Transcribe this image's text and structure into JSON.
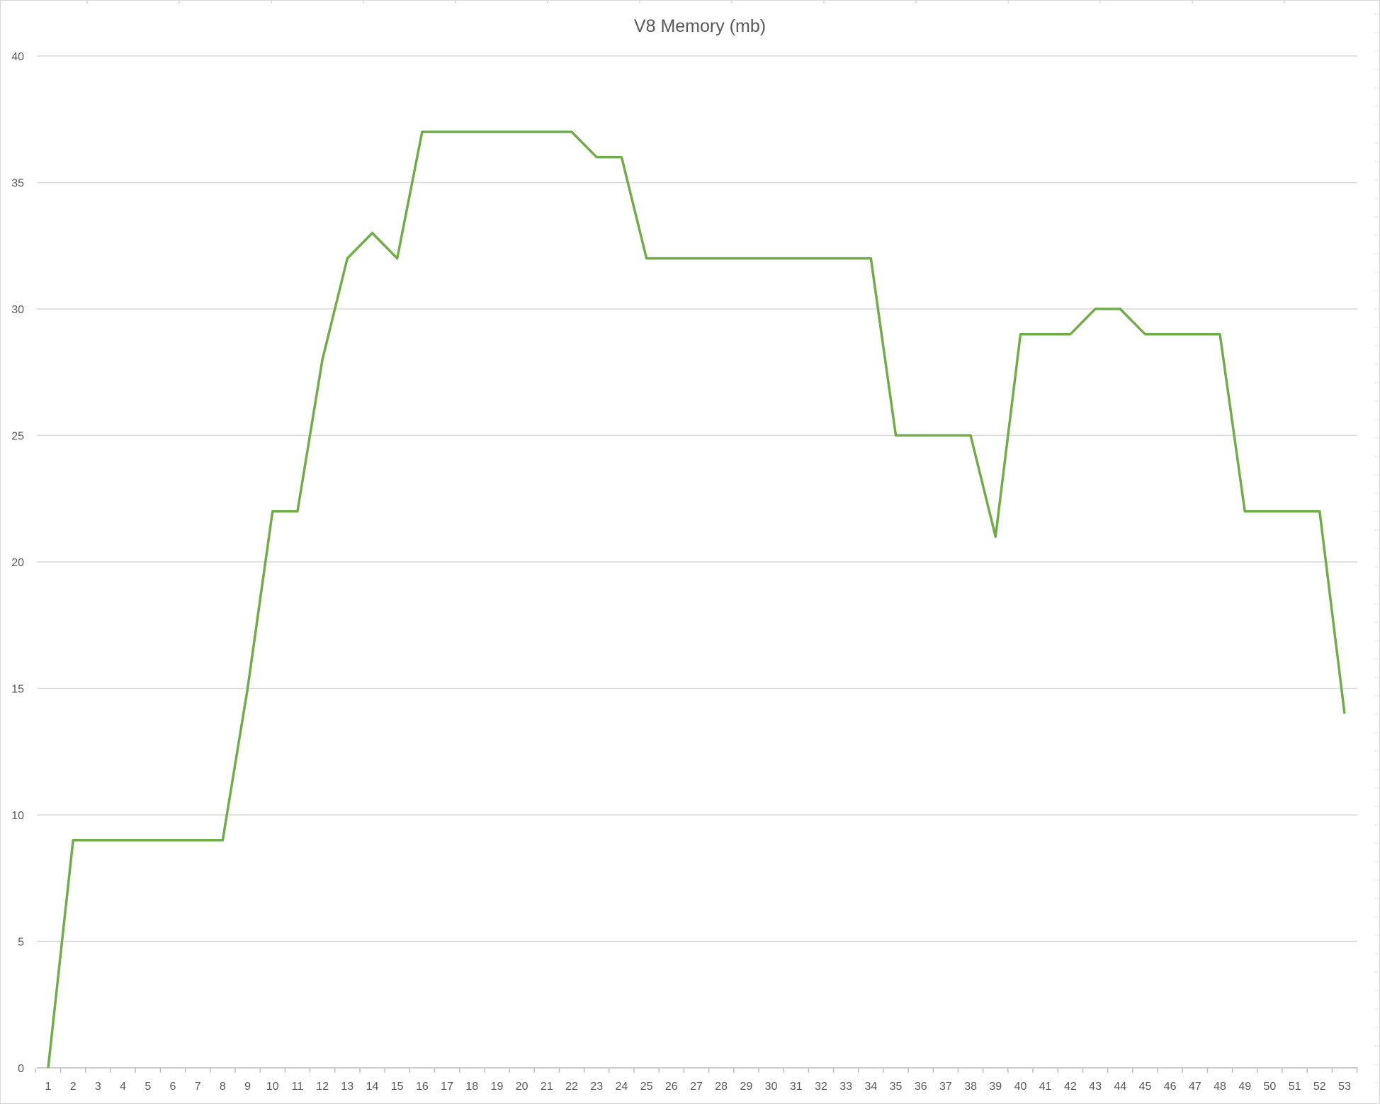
{
  "chart_data": {
    "type": "line",
    "title": "V8 Memory (mb)",
    "xlabel": "",
    "ylabel": "",
    "x": [
      1,
      2,
      3,
      4,
      5,
      6,
      7,
      8,
      9,
      10,
      11,
      12,
      13,
      14,
      15,
      16,
      17,
      18,
      19,
      20,
      21,
      22,
      23,
      24,
      25,
      26,
      27,
      28,
      29,
      30,
      31,
      32,
      33,
      34,
      35,
      36,
      37,
      38,
      39,
      40,
      41,
      42,
      43,
      44,
      45,
      46,
      47,
      48,
      49,
      50,
      51,
      52,
      53
    ],
    "series": [
      {
        "values": [
          0,
          9,
          9,
          9,
          9,
          9,
          9,
          9,
          15,
          22,
          22,
          28,
          32,
          33,
          32,
          37,
          37,
          37,
          37,
          37,
          37,
          37,
          36,
          36,
          32,
          32,
          32,
          32,
          32,
          32,
          32,
          32,
          32,
          32,
          25,
          25,
          25,
          25,
          21,
          29,
          29,
          29,
          30,
          30,
          29,
          29,
          29,
          29,
          22,
          22,
          22,
          22,
          14
        ],
        "color": "#70AD47"
      }
    ],
    "ylim": [
      0,
      40
    ],
    "yticks": [
      0,
      5,
      10,
      15,
      20,
      25,
      30,
      35,
      40
    ],
    "grid": true,
    "gridline_color": "#D9D9D9",
    "axis_color": "#BFBFBF",
    "legend": "none"
  }
}
